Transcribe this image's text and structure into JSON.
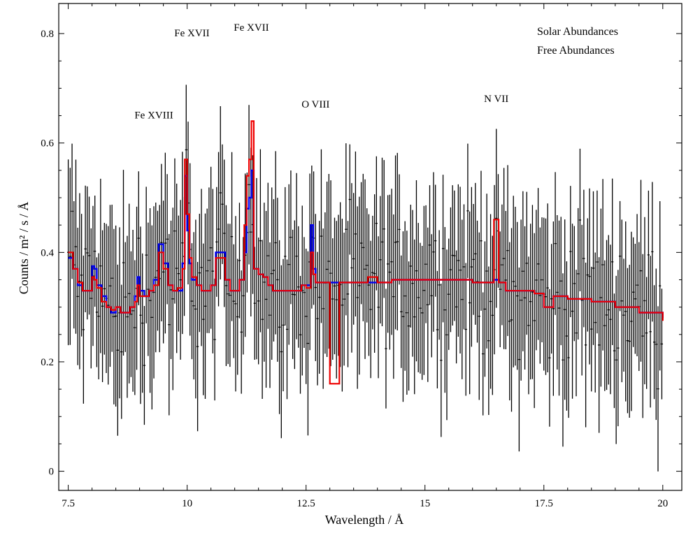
{
  "chart_data": {
    "type": "line",
    "title": "",
    "xlabel": "Wavelength / Å",
    "ylabel": "Counts / m² / s / Å",
    "xlim": [
      7.3,
      20.4
    ],
    "ylim": [
      -0.035,
      0.855
    ],
    "x_ticks": [
      7.5,
      10,
      12.5,
      15,
      17.5,
      20
    ],
    "x_tick_labels": [
      "7.5",
      "10",
      "12.5",
      "15",
      "17.5",
      "20"
    ],
    "y_ticks": [
      0,
      0.2,
      0.4,
      0.6,
      0.8
    ],
    "y_tick_labels": [
      "0",
      "0.2",
      "0.4",
      "0.6",
      "0.8"
    ],
    "grid": false,
    "legend_position": "top-right",
    "annotations": [
      {
        "text": "Fe XVIII",
        "x": 9.3,
        "y": 0.645
      },
      {
        "text": "Fe XVII",
        "x": 10.1,
        "y": 0.795
      },
      {
        "text": "Fe XVII",
        "x": 11.35,
        "y": 0.805
      },
      {
        "text": "O VIII",
        "x": 12.7,
        "y": 0.665
      },
      {
        "text": "N VII",
        "x": 16.5,
        "y": 0.675
      }
    ],
    "series": [
      {
        "name": "Solar Abundances",
        "color": "#0000ee",
        "style": "step",
        "x": [
          7.5,
          7.6,
          7.7,
          7.8,
          7.9,
          8.0,
          8.05,
          8.1,
          8.2,
          8.3,
          8.4,
          8.5,
          8.6,
          8.7,
          8.8,
          8.9,
          8.95,
          9.0,
          9.1,
          9.2,
          9.3,
          9.4,
          9.5,
          9.6,
          9.7,
          9.8,
          9.9,
          9.95,
          10.0,
          10.05,
          10.1,
          10.2,
          10.3,
          10.4,
          10.5,
          10.6,
          10.7,
          10.8,
          10.9,
          11.0,
          11.1,
          11.2,
          11.25,
          11.3,
          11.35,
          11.4,
          11.5,
          11.6,
          11.7,
          11.8,
          11.9,
          12.0,
          12.2,
          12.4,
          12.5,
          12.6,
          12.65,
          12.7,
          12.8,
          13.0,
          13.2,
          13.4,
          13.6,
          13.8,
          14.0,
          14.3,
          14.6,
          15.0,
          15.5,
          16.0,
          16.3,
          16.45,
          16.55,
          16.7,
          17.0,
          17.3,
          17.5,
          17.7,
          18.0,
          18.5,
          19.0,
          19.5,
          20.0
        ],
        "y": [
          0.39,
          0.37,
          0.34,
          0.33,
          0.33,
          0.375,
          0.37,
          0.34,
          0.32,
          0.3,
          0.29,
          0.3,
          0.29,
          0.29,
          0.3,
          0.32,
          0.355,
          0.33,
          0.32,
          0.33,
          0.35,
          0.415,
          0.38,
          0.34,
          0.33,
          0.33,
          0.38,
          0.54,
          0.44,
          0.38,
          0.35,
          0.34,
          0.33,
          0.33,
          0.34,
          0.4,
          0.4,
          0.35,
          0.33,
          0.33,
          0.35,
          0.4,
          0.48,
          0.5,
          0.55,
          0.37,
          0.36,
          0.355,
          0.34,
          0.33,
          0.33,
          0.33,
          0.33,
          0.34,
          0.34,
          0.45,
          0.37,
          0.345,
          0.345,
          0.345,
          0.345,
          0.345,
          0.345,
          0.345,
          0.345,
          0.35,
          0.35,
          0.35,
          0.35,
          0.345,
          0.345,
          0.35,
          0.345,
          0.33,
          0.33,
          0.325,
          0.3,
          0.32,
          0.315,
          0.31,
          0.3,
          0.29,
          0.28
        ]
      },
      {
        "name": "Free Abundances",
        "color": "#ee0000",
        "style": "step",
        "x": [
          7.5,
          7.6,
          7.7,
          7.8,
          7.9,
          8.0,
          8.05,
          8.1,
          8.2,
          8.3,
          8.4,
          8.5,
          8.6,
          8.7,
          8.8,
          8.9,
          8.95,
          9.0,
          9.1,
          9.2,
          9.3,
          9.4,
          9.5,
          9.6,
          9.7,
          9.8,
          9.9,
          9.95,
          10.0,
          10.05,
          10.1,
          10.2,
          10.3,
          10.4,
          10.5,
          10.6,
          10.7,
          10.8,
          10.9,
          11.0,
          11.1,
          11.2,
          11.25,
          11.3,
          11.35,
          11.4,
          11.5,
          11.6,
          11.7,
          11.8,
          11.9,
          12.0,
          12.2,
          12.4,
          12.5,
          12.6,
          12.65,
          12.7,
          12.8,
          12.9,
          13.0,
          13.2,
          13.4,
          13.6,
          13.8,
          14.0,
          14.3,
          14.6,
          15.0,
          15.5,
          16.0,
          16.3,
          16.45,
          16.55,
          16.7,
          17.0,
          17.3,
          17.5,
          17.7,
          18.0,
          18.5,
          19.0,
          19.5,
          20.0
        ],
        "y": [
          0.4,
          0.37,
          0.345,
          0.33,
          0.33,
          0.355,
          0.35,
          0.335,
          0.31,
          0.3,
          0.295,
          0.3,
          0.29,
          0.29,
          0.3,
          0.31,
          0.34,
          0.32,
          0.32,
          0.33,
          0.34,
          0.4,
          0.37,
          0.34,
          0.33,
          0.335,
          0.37,
          0.57,
          0.47,
          0.39,
          0.355,
          0.34,
          0.33,
          0.33,
          0.34,
          0.39,
          0.39,
          0.35,
          0.33,
          0.33,
          0.35,
          0.45,
          0.54,
          0.57,
          0.64,
          0.37,
          0.36,
          0.355,
          0.34,
          0.33,
          0.33,
          0.33,
          0.33,
          0.34,
          0.335,
          0.4,
          0.36,
          0.345,
          0.345,
          0.345,
          0.16,
          0.345,
          0.345,
          0.345,
          0.355,
          0.345,
          0.35,
          0.35,
          0.35,
          0.35,
          0.345,
          0.345,
          0.46,
          0.345,
          0.33,
          0.33,
          0.325,
          0.3,
          0.32,
          0.315,
          0.31,
          0.3,
          0.29,
          0.275
        ]
      }
    ],
    "data_points": {
      "name": "data",
      "color": "#000000",
      "x_start": 7.5,
      "x_step": 0.04,
      "count": 314
    }
  }
}
